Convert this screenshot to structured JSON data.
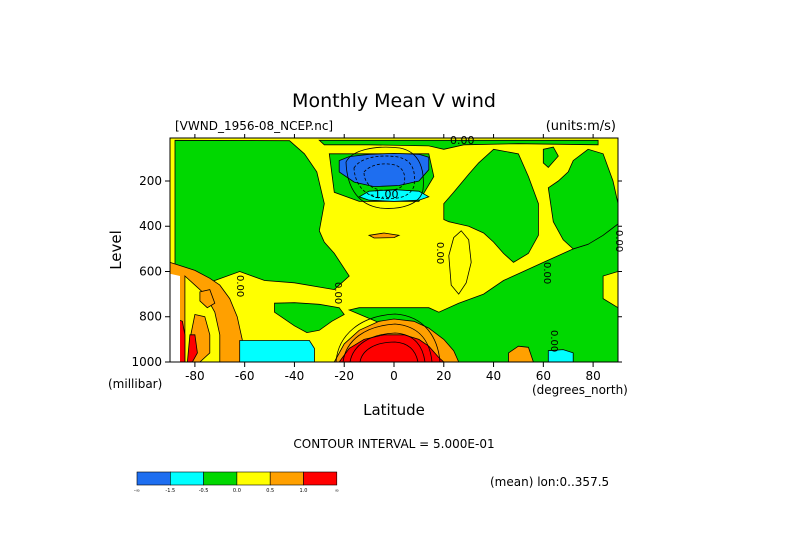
{
  "chart_data": {
    "type": "heatmap",
    "title": "Monthly Mean V wind",
    "dataset_label": "[VWND_1956-08_NCEP.nc]",
    "units_label": "(units:m/s)",
    "xlabel": "Latitude",
    "x_unit": "(degrees_north)",
    "ylabel": "Level",
    "y_unit": "(millibar)",
    "xlim": [
      -90,
      90
    ],
    "ylim": [
      1000,
      10
    ],
    "x_ticks": [
      {
        "value": -80,
        "label": "-80"
      },
      {
        "value": -60,
        "label": "-60"
      },
      {
        "value": -40,
        "label": "-40"
      },
      {
        "value": -20,
        "label": "-20"
      },
      {
        "value": 0,
        "label": "0"
      },
      {
        "value": 20,
        "label": "20"
      },
      {
        "value": 40,
        "label": "40"
      },
      {
        "value": 60,
        "label": "60"
      },
      {
        "value": 80,
        "label": "80"
      }
    ],
    "y_ticks": [
      {
        "value": 200,
        "label": "200"
      },
      {
        "value": 400,
        "label": "400"
      },
      {
        "value": 600,
        "label": "600"
      },
      {
        "value": 800,
        "label": "800"
      },
      {
        "value": 1000,
        "label": "1000"
      }
    ],
    "contour_interval_text": "CONTOUR INTERVAL = 5.000E-01",
    "mean_note": "(mean) lon:0..357.5",
    "contour_labels": [
      "0.00",
      "-1.00",
      "0.00",
      "0.00",
      "0.00",
      "0.00",
      "0.00",
      "0.00"
    ],
    "colorbar": {
      "colors": [
        "#1e6ef0",
        "#00ffff",
        "#00d800",
        "#ffff00",
        "#ffa000",
        "#ff0000"
      ],
      "tick_labels": [
        "-∞",
        "-1.5",
        "-0.5",
        "0.0",
        "0.5",
        "1.0",
        "∞"
      ]
    },
    "regions": [
      {
        "value": "yellow",
        "color": "#ffff00",
        "points": [
          [
            -90,
            10
          ],
          [
            90,
            10
          ],
          [
            90,
            1000
          ],
          [
            -90,
            1000
          ]
        ]
      },
      {
        "value": "green",
        "color": "#00d800",
        "points": [
          [
            -88,
            20
          ],
          [
            -42,
            22
          ],
          [
            -36,
            80
          ],
          [
            -31,
            160
          ],
          [
            -28,
            300
          ],
          [
            -30,
            420
          ],
          [
            -28,
            470
          ],
          [
            -24,
            520
          ],
          [
            -18,
            620
          ],
          [
            -24,
            680
          ],
          [
            -40,
            650
          ],
          [
            -52,
            640
          ],
          [
            -62,
            600
          ],
          [
            -72,
            640
          ],
          [
            -82,
            700
          ],
          [
            -88,
            700
          ]
        ]
      },
      {
        "value": "green",
        "color": "#00d800",
        "points": [
          [
            -48,
            740
          ],
          [
            -48,
            780
          ],
          [
            -40,
            840
          ],
          [
            -35,
            870
          ],
          [
            -30,
            860
          ],
          [
            -25,
            820
          ],
          [
            -20,
            790
          ],
          [
            -22,
            760
          ],
          [
            -30,
            745
          ],
          [
            -40,
            738
          ]
        ]
      },
      {
        "value": "green",
        "color": "#00d800",
        "points": [
          [
            -30,
            20
          ],
          [
            82,
            20
          ],
          [
            82,
            40
          ],
          [
            50,
            35
          ],
          [
            28,
            40
          ],
          [
            20,
            60
          ],
          [
            14,
            45
          ],
          [
            -10,
            40
          ],
          [
            -28,
            40
          ]
        ]
      },
      {
        "value": "green",
        "color": "#00d800",
        "points": [
          [
            -26,
            80
          ],
          [
            14,
            80
          ],
          [
            16,
            180
          ],
          [
            10,
            290
          ],
          [
            -14,
            290
          ],
          [
            -24,
            250
          ]
        ]
      },
      {
        "value": "green",
        "color": "#00d800",
        "points": [
          [
            -18,
            770
          ],
          [
            -14,
            760
          ],
          [
            14,
            760
          ],
          [
            18,
            780
          ],
          [
            26,
            740
          ],
          [
            36,
            700
          ],
          [
            44,
            640
          ],
          [
            50,
            610
          ],
          [
            60,
            560
          ],
          [
            72,
            500
          ],
          [
            78,
            480
          ],
          [
            82,
            440
          ],
          [
            88,
            400
          ],
          [
            90,
            390
          ],
          [
            90,
            600
          ],
          [
            84,
            620
          ],
          [
            84,
            720
          ],
          [
            90,
            760
          ],
          [
            90,
            1000
          ],
          [
            20,
            1000
          ],
          [
            16,
            950
          ],
          [
            10,
            900
          ]
        ]
      },
      {
        "value": "green",
        "color": "#00d800",
        "points": [
          [
            24,
            250
          ],
          [
            30,
            170
          ],
          [
            34,
            120
          ],
          [
            40,
            60
          ],
          [
            50,
            80
          ],
          [
            54,
            180
          ],
          [
            58,
            300
          ],
          [
            58,
            440
          ],
          [
            54,
            520
          ],
          [
            48,
            560
          ],
          [
            44,
            520
          ],
          [
            40,
            470
          ],
          [
            36,
            430
          ],
          [
            30,
            400
          ],
          [
            26,
            390
          ],
          [
            22,
            380
          ],
          [
            20,
            370
          ],
          [
            20,
            300
          ]
        ]
      },
      {
        "value": "green",
        "color": "#00d800",
        "points": [
          [
            62,
            230
          ],
          [
            66,
            200
          ],
          [
            70,
            160
          ],
          [
            72,
            110
          ],
          [
            78,
            60
          ],
          [
            84,
            80
          ],
          [
            88,
            200
          ],
          [
            90,
            300
          ],
          [
            90,
            390
          ],
          [
            84,
            440
          ],
          [
            78,
            480
          ],
          [
            72,
            500
          ],
          [
            68,
            460
          ],
          [
            64,
            380
          ]
        ]
      },
      {
        "value": "green",
        "color": "#00d800",
        "points": [
          [
            60,
            60
          ],
          [
            64,
            50
          ],
          [
            66,
            90
          ],
          [
            62,
            140
          ],
          [
            60,
            120
          ]
        ]
      },
      {
        "value": "yellow",
        "color": "#ffff00",
        "points": [
          [
            22,
            530
          ],
          [
            24,
            450
          ],
          [
            27,
            420
          ],
          [
            30,
            460
          ],
          [
            31,
            560
          ],
          [
            29,
            650
          ],
          [
            26,
            700
          ],
          [
            23,
            660
          ]
        ]
      },
      {
        "value": "orange",
        "color": "#ffa000",
        "points": [
          [
            -90,
            560
          ],
          [
            -80,
            595
          ],
          [
            -74,
            630
          ],
          [
            -70,
            660
          ],
          [
            -66,
            720
          ],
          [
            -63,
            800
          ],
          [
            -61,
            900
          ],
          [
            -60,
            1000
          ],
          [
            -90,
            1000
          ]
        ]
      },
      {
        "value": "yellow",
        "color": "#ffff00",
        "points": [
          [
            -84,
            620
          ],
          [
            -80,
            660
          ],
          [
            -76,
            700
          ],
          [
            -72,
            780
          ],
          [
            -70,
            880
          ],
          [
            -70,
            1000
          ],
          [
            -84,
            1000
          ]
        ]
      },
      {
        "value": "orange",
        "color": "#ffa000",
        "points": [
          [
            -78,
            690
          ],
          [
            -74,
            680
          ],
          [
            -72,
            740
          ],
          [
            -75,
            760
          ],
          [
            -78,
            730
          ]
        ]
      },
      {
        "value": "orange",
        "color": "#ffa000",
        "points": [
          [
            -80,
            790
          ],
          [
            -76,
            800
          ],
          [
            -74,
            880
          ],
          [
            -74,
            960
          ],
          [
            -78,
            1000
          ],
          [
            -82,
            1000
          ],
          [
            -82,
            900
          ]
        ]
      },
      {
        "value": "red",
        "color": "#ff0000",
        "points": [
          [
            -90,
            800
          ],
          [
            -85,
            820
          ],
          [
            -84,
            880
          ],
          [
            -84,
            1000
          ],
          [
            -90,
            1000
          ]
        ]
      },
      {
        "value": "red",
        "color": "#ff0000",
        "points": [
          [
            -82,
            880
          ],
          [
            -80,
            880
          ],
          [
            -79,
            960
          ],
          [
            -81,
            1000
          ],
          [
            -83,
            1000
          ]
        ]
      },
      {
        "value": "cyan",
        "color": "#00ffff",
        "points": [
          [
            -62,
            905
          ],
          [
            -34,
            905
          ],
          [
            -32,
            940
          ],
          [
            -32,
            1000
          ],
          [
            -62,
            1000
          ]
        ]
      },
      {
        "value": "cyan",
        "color": "#00ffff",
        "points": [
          [
            -14,
            270
          ],
          [
            -10,
            245
          ],
          [
            0,
            238
          ],
          [
            10,
            245
          ],
          [
            14,
            270
          ],
          [
            10,
            285
          ],
          [
            0,
            290
          ],
          [
            -10,
            285
          ]
        ]
      },
      {
        "value": "cyan",
        "color": "#00ffff",
        "points": [
          [
            62,
            950
          ],
          [
            68,
            945
          ],
          [
            72,
            960
          ],
          [
            72,
            1000
          ],
          [
            62,
            1000
          ]
        ]
      },
      {
        "value": "blue",
        "color": "#1e6ef0",
        "points": [
          [
            -22,
            110
          ],
          [
            -18,
            92
          ],
          [
            -10,
            82
          ],
          [
            0,
            78
          ],
          [
            10,
            82
          ],
          [
            14,
            95
          ],
          [
            14,
            150
          ],
          [
            10,
            200
          ],
          [
            2,
            220
          ],
          [
            -8,
            225
          ],
          [
            -16,
            205
          ],
          [
            -22,
            160
          ]
        ]
      },
      {
        "value": "orange",
        "color": "#ffa000",
        "points": [
          [
            -24,
            1000
          ],
          [
            -20,
            920
          ],
          [
            -14,
            860
          ],
          [
            -6,
            820
          ],
          [
            0,
            810
          ],
          [
            8,
            820
          ],
          [
            14,
            850
          ],
          [
            20,
            900
          ],
          [
            24,
            950
          ],
          [
            26,
            1000
          ]
        ]
      },
      {
        "value": "red",
        "color": "#ff0000",
        "points": [
          [
            -22,
            1000
          ],
          [
            -18,
            940
          ],
          [
            -12,
            900
          ],
          [
            -4,
            880
          ],
          [
            4,
            880
          ],
          [
            10,
            900
          ],
          [
            14,
            930
          ],
          [
            18,
            980
          ],
          [
            20,
            1000
          ]
        ]
      },
      {
        "value": "orange",
        "color": "#ffa000",
        "points": [
          [
            -10,
            440
          ],
          [
            -4,
            430
          ],
          [
            2,
            440
          ],
          [
            0,
            450
          ],
          [
            -8,
            452
          ]
        ]
      },
      {
        "value": "orange",
        "color": "#ffa000",
        "points": [
          [
            46,
            960
          ],
          [
            50,
            930
          ],
          [
            54,
            935
          ],
          [
            56,
            1000
          ],
          [
            46,
            1000
          ]
        ]
      },
      {
        "value": "white",
        "color": "#ffffff",
        "points": [
          [
            -90,
            610
          ],
          [
            -86,
            620
          ],
          [
            -86,
            1000
          ],
          [
            -90,
            1000
          ]
        ]
      }
    ]
  }
}
